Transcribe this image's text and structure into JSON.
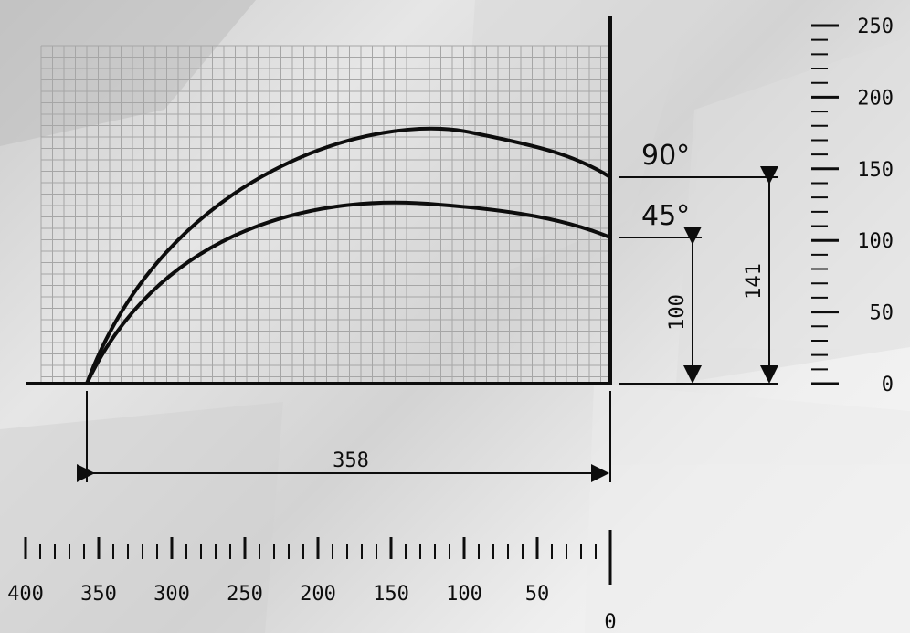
{
  "colors": {
    "grid": "#a6a6a6",
    "ink": "#0d0d0d",
    "background": "#e8e8e8"
  },
  "curves": {
    "upper": {
      "angle_label": "90°",
      "height_label": "141"
    },
    "lower": {
      "angle_label": "45°",
      "height_label": "100"
    }
  },
  "span": {
    "label": "358"
  },
  "scale_right": {
    "labels": [
      "250",
      "200",
      "150",
      "100",
      "50",
      "0"
    ]
  },
  "scale_bottom": {
    "labels": [
      "400",
      "350",
      "300",
      "250",
      "200",
      "150",
      "100",
      "50",
      "0"
    ]
  }
}
